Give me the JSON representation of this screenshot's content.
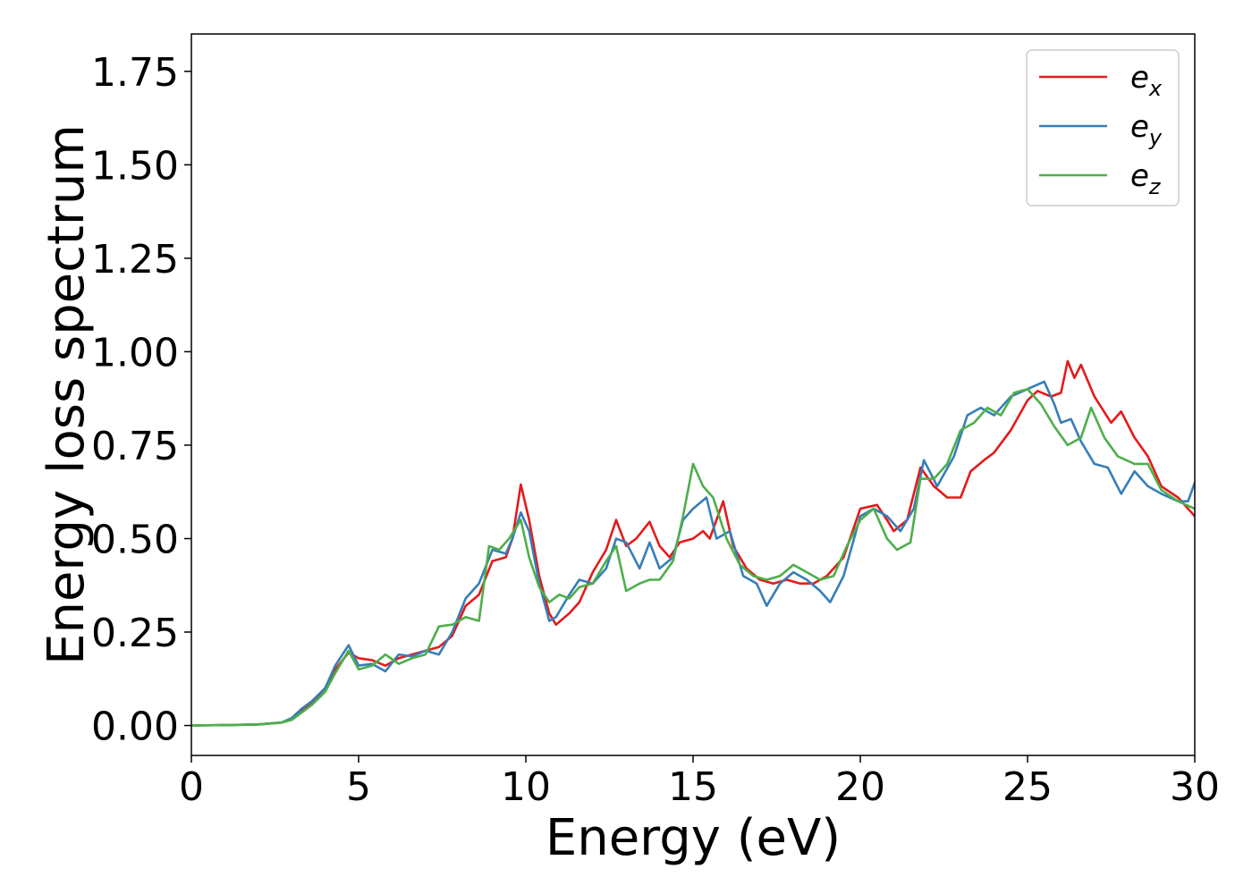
{
  "chart_data": {
    "type": "line",
    "title": "",
    "xlabel": "Energy (eV)",
    "ylabel": "Energy loss spectrum",
    "xlim": [
      0,
      30
    ],
    "ylim": [
      -0.08,
      1.85
    ],
    "xticks": [
      0,
      5,
      10,
      15,
      20,
      25,
      30
    ],
    "yticks": [
      0.0,
      0.25,
      0.5,
      0.75,
      1.0,
      1.25,
      1.5,
      1.75
    ],
    "ytick_labels": [
      "0.00",
      "0.25",
      "0.50",
      "0.75",
      "1.00",
      "1.25",
      "1.50",
      "1.75"
    ],
    "grid": false,
    "legend_position": "top-right",
    "series": [
      {
        "name": "e",
        "subscript": "x",
        "color": "#e41a1c",
        "points": [
          [
            0,
            0
          ],
          [
            1,
            0.001
          ],
          [
            2,
            0.003
          ],
          [
            2.7,
            0.008
          ],
          [
            3,
            0.018
          ],
          [
            3.3,
            0.04
          ],
          [
            3.6,
            0.06
          ],
          [
            4,
            0.1
          ],
          [
            4.3,
            0.15
          ],
          [
            4.7,
            0.195
          ],
          [
            5,
            0.18
          ],
          [
            5.4,
            0.175
          ],
          [
            5.8,
            0.16
          ],
          [
            6.2,
            0.18
          ],
          [
            6.6,
            0.19
          ],
          [
            7,
            0.2
          ],
          [
            7.4,
            0.21
          ],
          [
            7.8,
            0.24
          ],
          [
            8.2,
            0.32
          ],
          [
            8.6,
            0.35
          ],
          [
            9,
            0.44
          ],
          [
            9.4,
            0.45
          ],
          [
            9.6,
            0.5
          ],
          [
            9.85,
            0.645
          ],
          [
            10.1,
            0.55
          ],
          [
            10.4,
            0.4
          ],
          [
            10.7,
            0.3
          ],
          [
            10.9,
            0.27
          ],
          [
            11.3,
            0.3
          ],
          [
            11.6,
            0.33
          ],
          [
            12,
            0.41
          ],
          [
            12.4,
            0.47
          ],
          [
            12.7,
            0.55
          ],
          [
            13,
            0.48
          ],
          [
            13.3,
            0.5
          ],
          [
            13.7,
            0.545
          ],
          [
            14,
            0.48
          ],
          [
            14.3,
            0.45
          ],
          [
            14.6,
            0.49
          ],
          [
            15,
            0.5
          ],
          [
            15.3,
            0.52
          ],
          [
            15.5,
            0.5
          ],
          [
            15.9,
            0.6
          ],
          [
            16.2,
            0.48
          ],
          [
            16.6,
            0.42
          ],
          [
            17,
            0.39
          ],
          [
            17.4,
            0.38
          ],
          [
            17.8,
            0.39
          ],
          [
            18.2,
            0.38
          ],
          [
            18.6,
            0.38
          ],
          [
            19,
            0.4
          ],
          [
            19.5,
            0.45
          ],
          [
            20,
            0.58
          ],
          [
            20.5,
            0.59
          ],
          [
            20.8,
            0.55
          ],
          [
            21,
            0.52
          ],
          [
            21.4,
            0.55
          ],
          [
            21.8,
            0.69
          ],
          [
            22.2,
            0.64
          ],
          [
            22.6,
            0.61
          ],
          [
            23,
            0.61
          ],
          [
            23.3,
            0.68
          ],
          [
            23.7,
            0.71
          ],
          [
            24,
            0.73
          ],
          [
            24.5,
            0.79
          ],
          [
            25,
            0.87
          ],
          [
            25.3,
            0.895
          ],
          [
            25.7,
            0.88
          ],
          [
            26,
            0.89
          ],
          [
            26.2,
            0.975
          ],
          [
            26.4,
            0.93
          ],
          [
            26.6,
            0.965
          ],
          [
            27,
            0.88
          ],
          [
            27.5,
            0.81
          ],
          [
            27.8,
            0.84
          ],
          [
            28.2,
            0.77
          ],
          [
            28.6,
            0.72
          ],
          [
            29,
            0.64
          ],
          [
            29.5,
            0.61
          ],
          [
            30,
            0.56
          ]
        ]
      },
      {
        "name": "e",
        "subscript": "y",
        "color": "#377eb8",
        "points": [
          [
            0,
            0
          ],
          [
            1,
            0.001
          ],
          [
            2,
            0.003
          ],
          [
            2.7,
            0.008
          ],
          [
            3,
            0.02
          ],
          [
            3.3,
            0.045
          ],
          [
            3.6,
            0.065
          ],
          [
            4,
            0.1
          ],
          [
            4.3,
            0.16
          ],
          [
            4.7,
            0.215
          ],
          [
            5,
            0.16
          ],
          [
            5.4,
            0.165
          ],
          [
            5.8,
            0.145
          ],
          [
            6.2,
            0.19
          ],
          [
            6.6,
            0.185
          ],
          [
            7,
            0.2
          ],
          [
            7.4,
            0.19
          ],
          [
            7.8,
            0.25
          ],
          [
            8.2,
            0.34
          ],
          [
            8.6,
            0.38
          ],
          [
            9,
            0.47
          ],
          [
            9.4,
            0.46
          ],
          [
            9.6,
            0.5
          ],
          [
            9.85,
            0.57
          ],
          [
            10.1,
            0.52
          ],
          [
            10.4,
            0.38
          ],
          [
            10.7,
            0.28
          ],
          [
            10.9,
            0.29
          ],
          [
            11.3,
            0.35
          ],
          [
            11.6,
            0.39
          ],
          [
            12,
            0.38
          ],
          [
            12.4,
            0.42
          ],
          [
            12.7,
            0.5
          ],
          [
            13,
            0.49
          ],
          [
            13.4,
            0.42
          ],
          [
            13.7,
            0.49
          ],
          [
            14,
            0.42
          ],
          [
            14.4,
            0.45
          ],
          [
            14.7,
            0.55
          ],
          [
            15,
            0.58
          ],
          [
            15.4,
            0.61
          ],
          [
            15.7,
            0.5
          ],
          [
            16.1,
            0.52
          ],
          [
            16.5,
            0.4
          ],
          [
            16.9,
            0.38
          ],
          [
            17.2,
            0.32
          ],
          [
            17.6,
            0.38
          ],
          [
            18,
            0.41
          ],
          [
            18.4,
            0.39
          ],
          [
            18.8,
            0.36
          ],
          [
            19.1,
            0.33
          ],
          [
            19.5,
            0.4
          ],
          [
            20,
            0.56
          ],
          [
            20.4,
            0.58
          ],
          [
            20.8,
            0.56
          ],
          [
            21.2,
            0.52
          ],
          [
            21.6,
            0.58
          ],
          [
            21.9,
            0.71
          ],
          [
            22.3,
            0.64
          ],
          [
            22.8,
            0.72
          ],
          [
            23.2,
            0.83
          ],
          [
            23.6,
            0.85
          ],
          [
            24,
            0.83
          ],
          [
            24.5,
            0.88
          ],
          [
            25,
            0.9
          ],
          [
            25.5,
            0.92
          ],
          [
            25.8,
            0.86
          ],
          [
            26,
            0.81
          ],
          [
            26.3,
            0.82
          ],
          [
            26.6,
            0.76
          ],
          [
            27,
            0.7
          ],
          [
            27.4,
            0.69
          ],
          [
            27.8,
            0.62
          ],
          [
            28.2,
            0.68
          ],
          [
            28.6,
            0.64
          ],
          [
            29,
            0.62
          ],
          [
            29.5,
            0.6
          ],
          [
            29.8,
            0.6
          ],
          [
            30,
            0.65
          ]
        ]
      },
      {
        "name": "e",
        "subscript": "z",
        "color": "#4daf4a",
        "points": [
          [
            0,
            0
          ],
          [
            1,
            0.001
          ],
          [
            2,
            0.003
          ],
          [
            2.7,
            0.008
          ],
          [
            3,
            0.015
          ],
          [
            3.3,
            0.035
          ],
          [
            3.6,
            0.055
          ],
          [
            4,
            0.09
          ],
          [
            4.3,
            0.14
          ],
          [
            4.7,
            0.2
          ],
          [
            5,
            0.15
          ],
          [
            5.4,
            0.16
          ],
          [
            5.8,
            0.19
          ],
          [
            6.2,
            0.165
          ],
          [
            6.6,
            0.18
          ],
          [
            7,
            0.19
          ],
          [
            7.4,
            0.265
          ],
          [
            7.8,
            0.27
          ],
          [
            8.2,
            0.29
          ],
          [
            8.6,
            0.28
          ],
          [
            8.9,
            0.48
          ],
          [
            9.2,
            0.47
          ],
          [
            9.5,
            0.5
          ],
          [
            9.85,
            0.55
          ],
          [
            10.1,
            0.45
          ],
          [
            10.4,
            0.37
          ],
          [
            10.7,
            0.33
          ],
          [
            11,
            0.35
          ],
          [
            11.3,
            0.34
          ],
          [
            11.6,
            0.37
          ],
          [
            12,
            0.38
          ],
          [
            12.4,
            0.44
          ],
          [
            12.7,
            0.48
          ],
          [
            13,
            0.36
          ],
          [
            13.4,
            0.38
          ],
          [
            13.7,
            0.39
          ],
          [
            14,
            0.39
          ],
          [
            14.4,
            0.44
          ],
          [
            14.7,
            0.56
          ],
          [
            15,
            0.7
          ],
          [
            15.3,
            0.64
          ],
          [
            15.6,
            0.61
          ],
          [
            16,
            0.5
          ],
          [
            16.4,
            0.43
          ],
          [
            16.8,
            0.4
          ],
          [
            17.2,
            0.39
          ],
          [
            17.6,
            0.4
          ],
          [
            18,
            0.43
          ],
          [
            18.4,
            0.41
          ],
          [
            18.8,
            0.39
          ],
          [
            19.2,
            0.4
          ],
          [
            19.6,
            0.48
          ],
          [
            20,
            0.55
          ],
          [
            20.4,
            0.58
          ],
          [
            20.8,
            0.5
          ],
          [
            21.1,
            0.47
          ],
          [
            21.5,
            0.49
          ],
          [
            21.8,
            0.66
          ],
          [
            22.2,
            0.66
          ],
          [
            22.6,
            0.7
          ],
          [
            23,
            0.79
          ],
          [
            23.4,
            0.81
          ],
          [
            23.8,
            0.85
          ],
          [
            24.2,
            0.83
          ],
          [
            24.6,
            0.89
          ],
          [
            25,
            0.9
          ],
          [
            25.4,
            0.86
          ],
          [
            25.8,
            0.8
          ],
          [
            26.2,
            0.75
          ],
          [
            26.6,
            0.77
          ],
          [
            26.9,
            0.85
          ],
          [
            27.3,
            0.77
          ],
          [
            27.7,
            0.72
          ],
          [
            28.2,
            0.7
          ],
          [
            28.6,
            0.7
          ],
          [
            29,
            0.63
          ],
          [
            29.5,
            0.6
          ],
          [
            30,
            0.58
          ]
        ]
      }
    ]
  }
}
